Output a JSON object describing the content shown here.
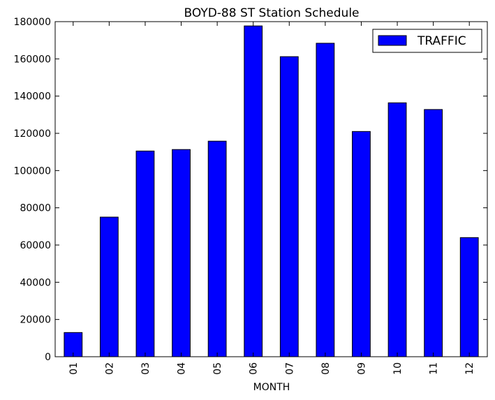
{
  "chart_data": {
    "type": "bar",
    "title": "BOYD-88 ST Station Schedule",
    "xlabel": "MONTH",
    "ylabel": "",
    "categories": [
      "01",
      "02",
      "03",
      "04",
      "05",
      "06",
      "07",
      "08",
      "09",
      "10",
      "11",
      "12"
    ],
    "series": [
      {
        "name": "TRAFFIC",
        "values": [
          13000,
          75000,
          110500,
          111300,
          115800,
          177700,
          161200,
          168400,
          121000,
          136400,
          132800,
          64000
        ],
        "color": "#0000ff"
      }
    ],
    "ylim": [
      0,
      180000
    ],
    "yticks": [
      0,
      20000,
      40000,
      60000,
      80000,
      100000,
      120000,
      140000,
      160000,
      180000
    ],
    "ytick_labels": [
      "0",
      "20000",
      "40000",
      "60000",
      "80000",
      "100000",
      "120000",
      "140000",
      "160000",
      "180000"
    ],
    "grid": false,
    "legend_position": "top-right"
  }
}
